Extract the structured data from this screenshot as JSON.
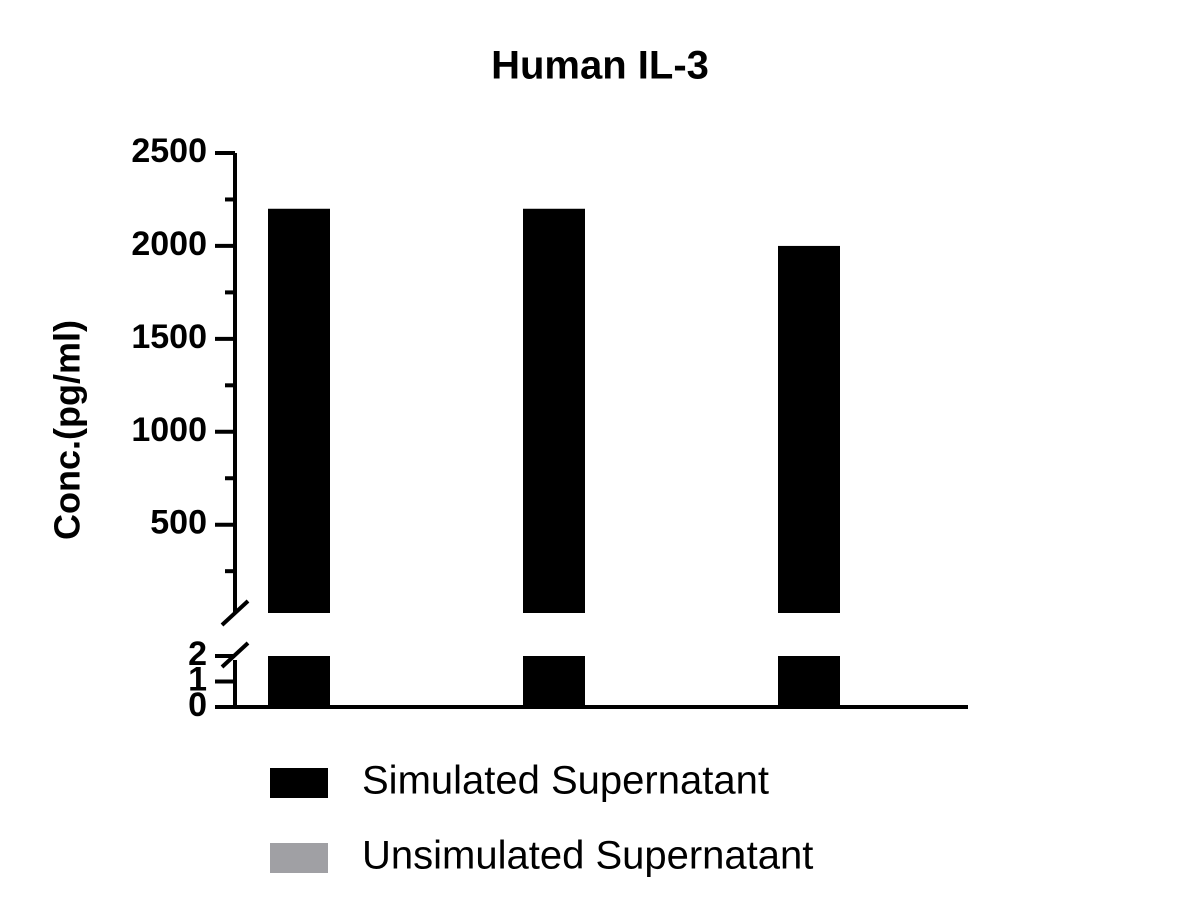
{
  "chart_data": {
    "type": "bar",
    "title": "Human IL-3",
    "y_label": "Conc.(pg/ml)",
    "categories": [
      null,
      null,
      null
    ],
    "series": [
      {
        "name": "Simulated Supernatant",
        "color": "#000000",
        "values": [
          2200,
          2200,
          2000
        ]
      },
      {
        "name": "Unsimulated Supernatant",
        "color": "#a0a0a4",
        "values": [
          0,
          0,
          0
        ]
      }
    ],
    "y_segments": [
      {
        "ylim": [
          0,
          2
        ],
        "yticks": [
          0,
          1,
          2
        ]
      },
      {
        "ylim": [
          25,
          2500
        ],
        "yticks": [
          500,
          1000,
          1500,
          2000,
          2500
        ],
        "minor_yticks": [
          250,
          750,
          1250,
          1750,
          2250
        ]
      }
    ],
    "axis_break": true,
    "legend": "bottom"
  }
}
